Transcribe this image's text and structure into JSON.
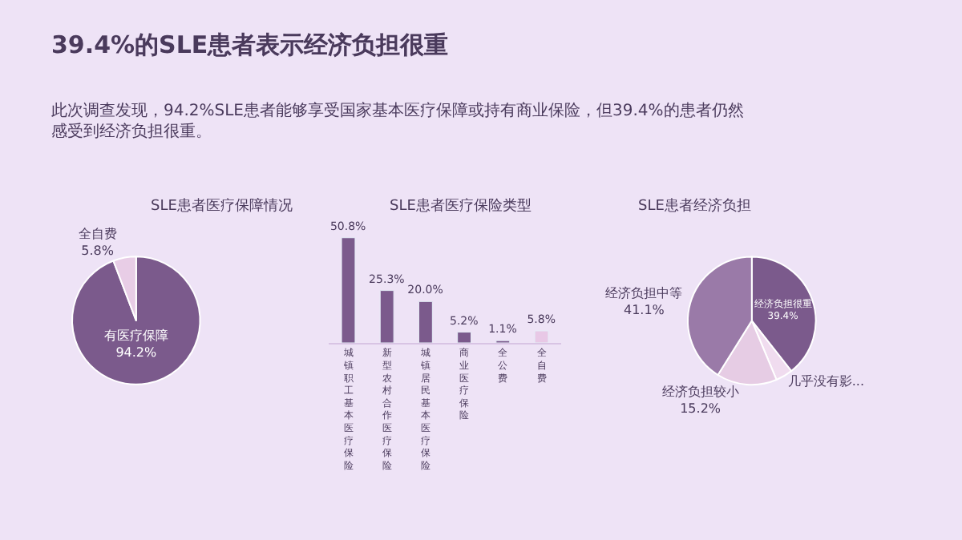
{
  "chart_data": [
    {
      "type": "other",
      "title": "39.4%的SLE患者表示经济负担很重",
      "subtitle": "此次调查发现，94.2%SLE患者能够享受国家基本医疗保障或持有商业保险，但39.4%的患者仍然感受到经济负担很重。"
    },
    {
      "type": "pie",
      "title": "SLE患者医疗保障情况",
      "categories": [
        "有医疗保障",
        "全自费"
      ],
      "values": [
        94.2,
        5.8
      ],
      "value_labels": [
        "94.2%",
        "5.8%"
      ],
      "colors": [
        "#7b5a8c",
        "#e8cde6"
      ]
    },
    {
      "type": "bar",
      "title": "SLE患者医疗保险类型",
      "categories": [
        "城镇职工基本医疗保险",
        "新型农村合作医疗保险",
        "城镇居民基本医疗保险",
        "商业医疗保险",
        "全公费",
        "全自费"
      ],
      "values": [
        50.8,
        25.3,
        20.0,
        5.2,
        1.1,
        5.8
      ],
      "value_labels": [
        "50.8%",
        "25.3%",
        "20.0%",
        "5.2%",
        "1.1%",
        "5.8%"
      ],
      "colors": [
        "#7b5a8c",
        "#7b5a8c",
        "#7b5a8c",
        "#7b5a8c",
        "#7b5a8c",
        "#e8c8e6"
      ]
    },
    {
      "type": "pie",
      "title": "SLE患者经济负担",
      "categories": [
        "经济负担很重",
        "几乎没有影...",
        "经济负担较小",
        "经济负担中等"
      ],
      "values": [
        39.4,
        4.3,
        15.2,
        41.1
      ],
      "value_labels": [
        "39.4%",
        null,
        "15.2%",
        "41.1%"
      ],
      "colors": [
        "#7b5a8c",
        "#f0dcef",
        "#e6cce4",
        "#9a7aa8"
      ]
    }
  ]
}
